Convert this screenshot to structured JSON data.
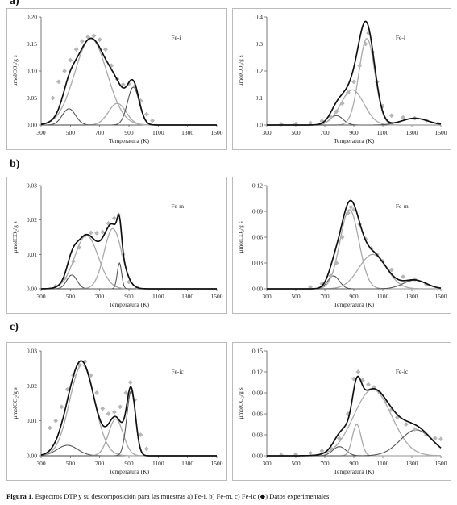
{
  "row_labels": [
    "a)",
    "b)",
    "c)"
  ],
  "caption": {
    "label": "Figura 1",
    "text": ". Espectros DTP y su descomposición para las muestras a) Fe-i, b) Fe-m, c) Fe-ic  (",
    "marker": "◆",
    "text_end": ") Datos experimentales."
  },
  "colors": {
    "total": "#111111",
    "light": "#a9a9a9",
    "dark": "#555555",
    "marker": "#b8b8b8"
  },
  "chart_data": [
    {
      "type": "line",
      "sample": "Fe-i",
      "xlabel": "Temperatura (K)",
      "ylabel": "μmolCO₂/g s",
      "xlim": [
        300,
        1500
      ],
      "ylim": [
        0,
        0.2
      ],
      "xticks": [
        300,
        500,
        700,
        900,
        1100,
        1300,
        1500
      ],
      "yticks": [
        0.0,
        0.05,
        0.1,
        0.15,
        0.2
      ],
      "ytick_labels": [
        "0.00",
        "0.05",
        "0.10",
        "0.15",
        "0.20"
      ],
      "components": [
        {
          "shade": "dark",
          "center": 490,
          "amp": 0.03,
          "sigma": 45
        },
        {
          "shade": "light",
          "center": 640,
          "amp": 0.16,
          "sigma": 110
        },
        {
          "shade": "light",
          "center": 820,
          "amp": 0.04,
          "sigma": 60
        },
        {
          "shade": "dark",
          "center": 930,
          "amp": 0.07,
          "sigma": 40
        }
      ],
      "experimental": [
        [
          380,
          0.05
        ],
        [
          420,
          0.08
        ],
        [
          460,
          0.1
        ],
        [
          500,
          0.12
        ],
        [
          540,
          0.14
        ],
        [
          580,
          0.155
        ],
        [
          620,
          0.163
        ],
        [
          660,
          0.165
        ],
        [
          700,
          0.158
        ],
        [
          740,
          0.14
        ],
        [
          780,
          0.11
        ],
        [
          820,
          0.085
        ],
        [
          860,
          0.075
        ],
        [
          900,
          0.076
        ],
        [
          940,
          0.072
        ],
        [
          980,
          0.045
        ],
        [
          1020,
          0.02
        ],
        [
          1060,
          0.008
        ]
      ]
    },
    {
      "type": "line",
      "sample": "Fe-i",
      "xlabel": "Temperatura (K)",
      "ylabel": "μmolCO₂/g s",
      "xlim": [
        300,
        1500
      ],
      "ylim": [
        0,
        0.4
      ],
      "xticks": [
        300,
        500,
        700,
        900,
        1100,
        1300,
        1500
      ],
      "yticks": [
        0.0,
        0.1,
        0.2,
        0.3,
        0.4
      ],
      "ytick_labels": [
        "0.0",
        "0.1",
        "0.2",
        "0.3",
        "0.4"
      ],
      "components": [
        {
          "shade": "dark",
          "center": 780,
          "amp": 0.035,
          "sigma": 45
        },
        {
          "shade": "light",
          "center": 890,
          "amp": 0.13,
          "sigma": 80
        },
        {
          "shade": "light",
          "center": 990,
          "amp": 0.32,
          "sigma": 55
        },
        {
          "shade": "dark",
          "center": 1320,
          "amp": 0.025,
          "sigma": 90
        }
      ],
      "experimental": [
        [
          400,
          0.003
        ],
        [
          500,
          0.004
        ],
        [
          600,
          0.008
        ],
        [
          680,
          0.015
        ],
        [
          740,
          0.03
        ],
        [
          780,
          0.05
        ],
        [
          820,
          0.08
        ],
        [
          860,
          0.12
        ],
        [
          900,
          0.16
        ],
        [
          940,
          0.22
        ],
        [
          980,
          0.3
        ],
        [
          1000,
          0.34
        ],
        [
          1030,
          0.27
        ],
        [
          1060,
          0.16
        ],
        [
          1100,
          0.07
        ],
        [
          1160,
          0.035
        ],
        [
          1240,
          0.028
        ],
        [
          1320,
          0.025
        ],
        [
          1400,
          0.018
        ],
        [
          1480,
          0.005
        ]
      ]
    },
    {
      "type": "line",
      "sample": "Fe-m",
      "xlabel": "Temperatura (K)",
      "ylabel": "μmolCO₂/g s",
      "xlim": [
        300,
        1500
      ],
      "ylim": [
        0,
        0.03
      ],
      "xticks": [
        300,
        500,
        700,
        900,
        1100,
        1300,
        1500
      ],
      "yticks": [
        0.0,
        0.01,
        0.02,
        0.03
      ],
      "ytick_labels": [
        "0.00",
        "0.01",
        "0.02",
        "0.03"
      ],
      "components": [
        {
          "shade": "dark",
          "center": 510,
          "amp": 0.004,
          "sigma": 35
        },
        {
          "shade": "light",
          "center": 610,
          "amp": 0.0155,
          "sigma": 80
        },
        {
          "shade": "light",
          "center": 790,
          "amp": 0.0175,
          "sigma": 60
        },
        {
          "shade": "dark",
          "center": 835,
          "amp": 0.0075,
          "sigma": 15
        }
      ],
      "experimental": [
        [
          400,
          0.0008
        ],
        [
          460,
          0.003
        ],
        [
          520,
          0.008
        ],
        [
          560,
          0.012
        ],
        [
          600,
          0.0155
        ],
        [
          640,
          0.0163
        ],
        [
          680,
          0.0162
        ],
        [
          720,
          0.0165
        ],
        [
          760,
          0.019
        ],
        [
          800,
          0.0205
        ],
        [
          830,
          0.0215
        ],
        [
          860,
          0.01
        ],
        [
          900,
          0.002
        ],
        [
          960,
          0.0003
        ]
      ]
    },
    {
      "type": "line",
      "sample": "Fe-m",
      "xlabel": "Temperatura (K)",
      "ylabel": "μmolCO₂/g s",
      "xlim": [
        300,
        1500
      ],
      "ylim": [
        0,
        0.12
      ],
      "xticks": [
        300,
        500,
        700,
        900,
        1100,
        1300,
        1500
      ],
      "yticks": [
        0.0,
        0.03,
        0.06,
        0.09,
        0.12
      ],
      "ytick_labels": [
        "0.00",
        "0.03",
        "0.06",
        "0.09",
        "0.12"
      ],
      "components": [
        {
          "shade": "dark",
          "center": 760,
          "amp": 0.015,
          "sigma": 40
        },
        {
          "shade": "light",
          "center": 870,
          "amp": 0.092,
          "sigma": 65
        },
        {
          "shade": "light",
          "center": 1030,
          "amp": 0.04,
          "sigma": 95
        },
        {
          "shade": "dark",
          "center": 1320,
          "amp": 0.01,
          "sigma": 80
        }
      ],
      "experimental": [
        [
          600,
          0.002
        ],
        [
          680,
          0.006
        ],
        [
          740,
          0.015
        ],
        [
          780,
          0.03
        ],
        [
          820,
          0.06
        ],
        [
          860,
          0.088
        ],
        [
          880,
          0.095
        ],
        [
          900,
          0.092
        ],
        [
          940,
          0.075
        ],
        [
          980,
          0.058
        ],
        [
          1020,
          0.047
        ],
        [
          1060,
          0.04
        ],
        [
          1100,
          0.032
        ],
        [
          1160,
          0.022
        ],
        [
          1240,
          0.014
        ],
        [
          1320,
          0.011
        ],
        [
          1400,
          0.005
        ]
      ]
    },
    {
      "type": "line",
      "sample": "Fe-ic",
      "xlabel": "Temperatura (K)",
      "ylabel": "μmolCO₂/g s",
      "xlim": [
        300,
        1500
      ],
      "ylim": [
        0,
        0.03
      ],
      "xticks": [
        300,
        500,
        700,
        900,
        1100,
        1300,
        1500
      ],
      "yticks": [
        0.0,
        0.01,
        0.02,
        0.03
      ],
      "ytick_labels": [
        "0.00",
        "0.01",
        "0.02",
        "0.03"
      ],
      "components": [
        {
          "shade": "dark",
          "center": 480,
          "amp": 0.003,
          "sigma": 70
        },
        {
          "shade": "light",
          "center": 580,
          "amp": 0.026,
          "sigma": 85
        },
        {
          "shade": "light",
          "center": 810,
          "amp": 0.0105,
          "sigma": 50
        },
        {
          "shade": "dark",
          "center": 915,
          "amp": 0.0185,
          "sigma": 30
        }
      ],
      "experimental": [
        [
          360,
          0.008
        ],
        [
          400,
          0.01
        ],
        [
          440,
          0.014
        ],
        [
          480,
          0.019
        ],
        [
          520,
          0.023
        ],
        [
          560,
          0.026
        ],
        [
          600,
          0.027
        ],
        [
          640,
          0.023
        ],
        [
          680,
          0.018
        ],
        [
          720,
          0.0135
        ],
        [
          760,
          0.012
        ],
        [
          800,
          0.0125
        ],
        [
          840,
          0.014
        ],
        [
          880,
          0.018
        ],
        [
          910,
          0.021
        ],
        [
          940,
          0.016
        ],
        [
          980,
          0.006
        ],
        [
          1020,
          0.002
        ]
      ]
    },
    {
      "type": "line",
      "sample": "Fe-ic",
      "xlabel": "Temperatura (K)",
      "ylabel": "μmolCO₂/g s",
      "xlim": [
        300,
        1500
      ],
      "ylim": [
        0,
        0.15
      ],
      "xticks": [
        300,
        500,
        700,
        900,
        1100,
        1300,
        1500
      ],
      "yticks": [
        0.0,
        0.03,
        0.06,
        0.09,
        0.12,
        0.15
      ],
      "ytick_labels": [
        "0.00",
        "0.03",
        "0.06",
        "0.09",
        "0.12",
        "0.15"
      ],
      "components": [
        {
          "shade": "dark",
          "center": 800,
          "amp": 0.013,
          "sigma": 45
        },
        {
          "shade": "light",
          "center": 920,
          "amp": 0.045,
          "sigma": 30
        },
        {
          "shade": "light",
          "center": 1030,
          "amp": 0.095,
          "sigma": 130
        },
        {
          "shade": "dark",
          "center": 1330,
          "amp": 0.037,
          "sigma": 110
        }
      ],
      "experimental": [
        [
          400,
          0.001
        ],
        [
          500,
          0.002
        ],
        [
          600,
          0.004
        ],
        [
          680,
          0.007
        ],
        [
          740,
          0.011
        ],
        [
          800,
          0.025
        ],
        [
          860,
          0.06
        ],
        [
          900,
          0.11
        ],
        [
          930,
          0.12
        ],
        [
          960,
          0.108
        ],
        [
          1000,
          0.102
        ],
        [
          1040,
          0.098
        ],
        [
          1080,
          0.09
        ],
        [
          1120,
          0.078
        ],
        [
          1160,
          0.066
        ],
        [
          1200,
          0.055
        ],
        [
          1260,
          0.045
        ],
        [
          1320,
          0.038
        ],
        [
          1400,
          0.03
        ],
        [
          1460,
          0.025
        ],
        [
          1500,
          0.024
        ]
      ]
    }
  ]
}
